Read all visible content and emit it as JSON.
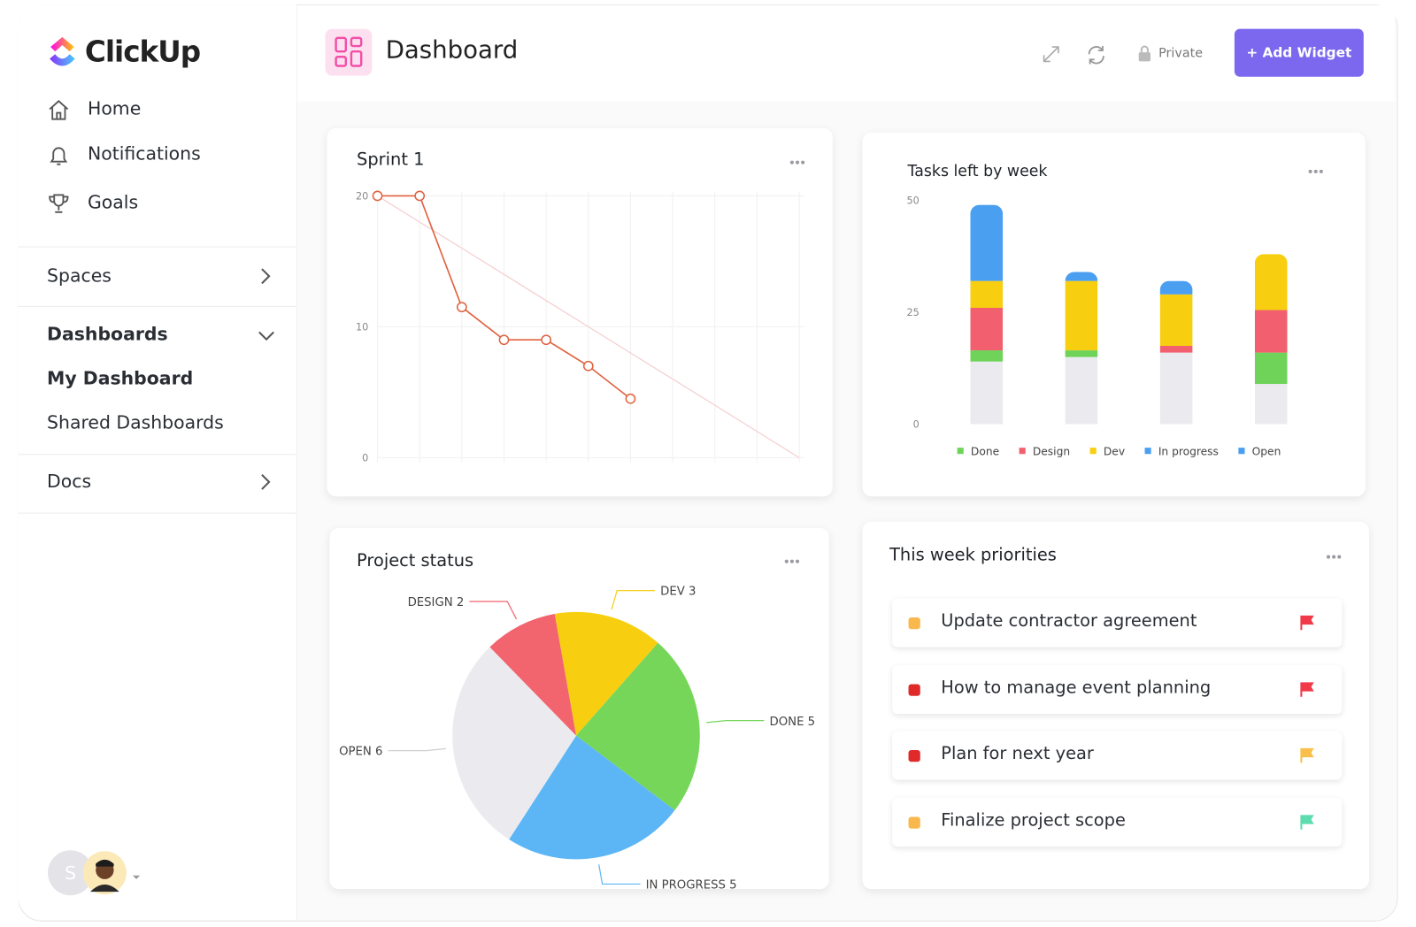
{
  "sidebar": {
    "logo": "ClickUp",
    "nav": [
      "Home",
      "Notifications",
      "Goals"
    ],
    "sections": [
      {
        "label": "Spaces"
      },
      {
        "label": "Dashboards",
        "items": [
          "My Dashboard",
          "Shared Dashboards"
        ]
      },
      {
        "label": "Docs"
      }
    ],
    "avatar": "S"
  },
  "header": {
    "title": "Dashboard",
    "privacy": "Private",
    "add_button": "+ Add Widget"
  },
  "chart_data": [
    {
      "type": "line",
      "title": "Sprint 1",
      "categories": [
        null,
        null,
        null,
        null,
        null,
        null,
        null,
        null,
        null,
        null,
        null
      ],
      "series": [
        {
          "color": "#e0623f",
          "values": [
            20,
            20,
            11.5,
            9,
            9,
            7,
            4.5,
            null,
            null,
            null,
            null
          ]
        },
        {
          "color": "#f5cfd0",
          "values": [
            20,
            18,
            16,
            14,
            12,
            10,
            8,
            6,
            4,
            2,
            0
          ]
        }
      ],
      "ylim": [
        0,
        20
      ],
      "yticks": [
        0,
        10,
        20
      ],
      "grid": true
    },
    {
      "type": "stacked_bar",
      "title": "Tasks left by week",
      "categories": [
        null,
        null,
        null,
        null
      ],
      "series": [
        {
          "name": "Open",
          "color": "#ebebef",
          "values": [
            14,
            15,
            16,
            9
          ]
        },
        {
          "name": "Done",
          "color": "#6fd35a",
          "values": [
            2.5,
            1.5,
            0,
            7
          ]
        },
        {
          "name": "Design",
          "color": "#f2606f",
          "values": [
            9.5,
            0,
            1.5,
            9.5
          ]
        },
        {
          "name": "Dev",
          "color": "#f8cf10",
          "values": [
            6,
            15.5,
            11.5,
            12.5
          ]
        },
        {
          "name": "In progress",
          "color": "#4b9ff0",
          "values": [
            17,
            2,
            3,
            0
          ]
        }
      ],
      "ylim": [
        0,
        50
      ],
      "yticks": [
        0,
        25,
        50
      ],
      "legend": "bottom"
    },
    {
      "type": "pie",
      "title": "Project status",
      "values": [
        3,
        5,
        5,
        6,
        2
      ],
      "value_labels": [
        "DEV 3",
        "DONE 5",
        "IN PROGRESS 5",
        "OPEN 6",
        "DESIGN 2"
      ],
      "colors": [
        "#f8cf10",
        "#76d65a",
        "#5cb6f6",
        "#ebebef",
        "#f2646e"
      ]
    }
  ],
  "priorities": {
    "title": "This week priorities",
    "items": [
      {
        "text": "Update contractor agreement",
        "status_color": "#f8b84e",
        "flag_color": "#f03a4a"
      },
      {
        "text": "How to manage event planning",
        "status_color": "#e02a2a",
        "flag_color": "#f03a4a"
      },
      {
        "text": "Plan for next year",
        "status_color": "#e02a2a",
        "flag_color": "#f8bf4a"
      },
      {
        "text": "Finalize project scope",
        "status_color": "#f8b84e",
        "flag_color": "#5ddcb0"
      }
    ]
  }
}
